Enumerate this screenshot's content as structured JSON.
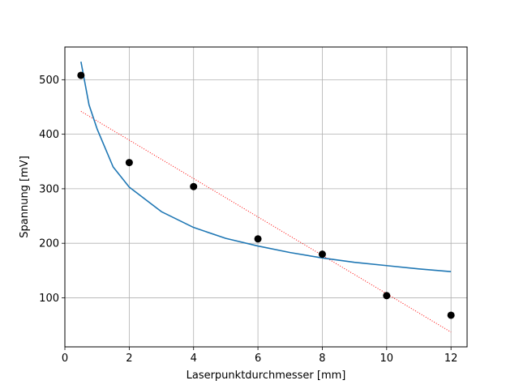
{
  "chart_data": {
    "type": "scatter",
    "title": "",
    "xlabel": "Laserpunktdurchmesser [mm]",
    "ylabel": "Spannung [mV]",
    "xlim": [
      0,
      12.5
    ],
    "ylim": [
      10,
      560
    ],
    "grid": true,
    "x_ticks": [
      0,
      2,
      4,
      6,
      8,
      10,
      12
    ],
    "y_ticks": [
      100,
      200,
      300,
      400,
      500
    ],
    "points": {
      "x": [
        0.5,
        2,
        4,
        6,
        8,
        10,
        12
      ],
      "y": [
        508,
        348,
        304,
        208,
        180,
        104,
        68
      ],
      "color": "#000000"
    },
    "fit_curve": {
      "style": "solid",
      "color": "#1f77b4",
      "x": [
        0.5,
        0.75,
        1.0,
        1.5,
        2,
        3,
        4,
        5,
        6,
        7,
        8,
        9,
        10,
        11,
        12
      ],
      "y": [
        533,
        454,
        410,
        340,
        303,
        258,
        229,
        209,
        195,
        183,
        173,
        165,
        159,
        153,
        148
      ]
    },
    "linear_fit": {
      "style": "dotted",
      "color": "#ff0000",
      "x": [
        0.5,
        12
      ],
      "y": [
        442,
        37
      ]
    }
  }
}
